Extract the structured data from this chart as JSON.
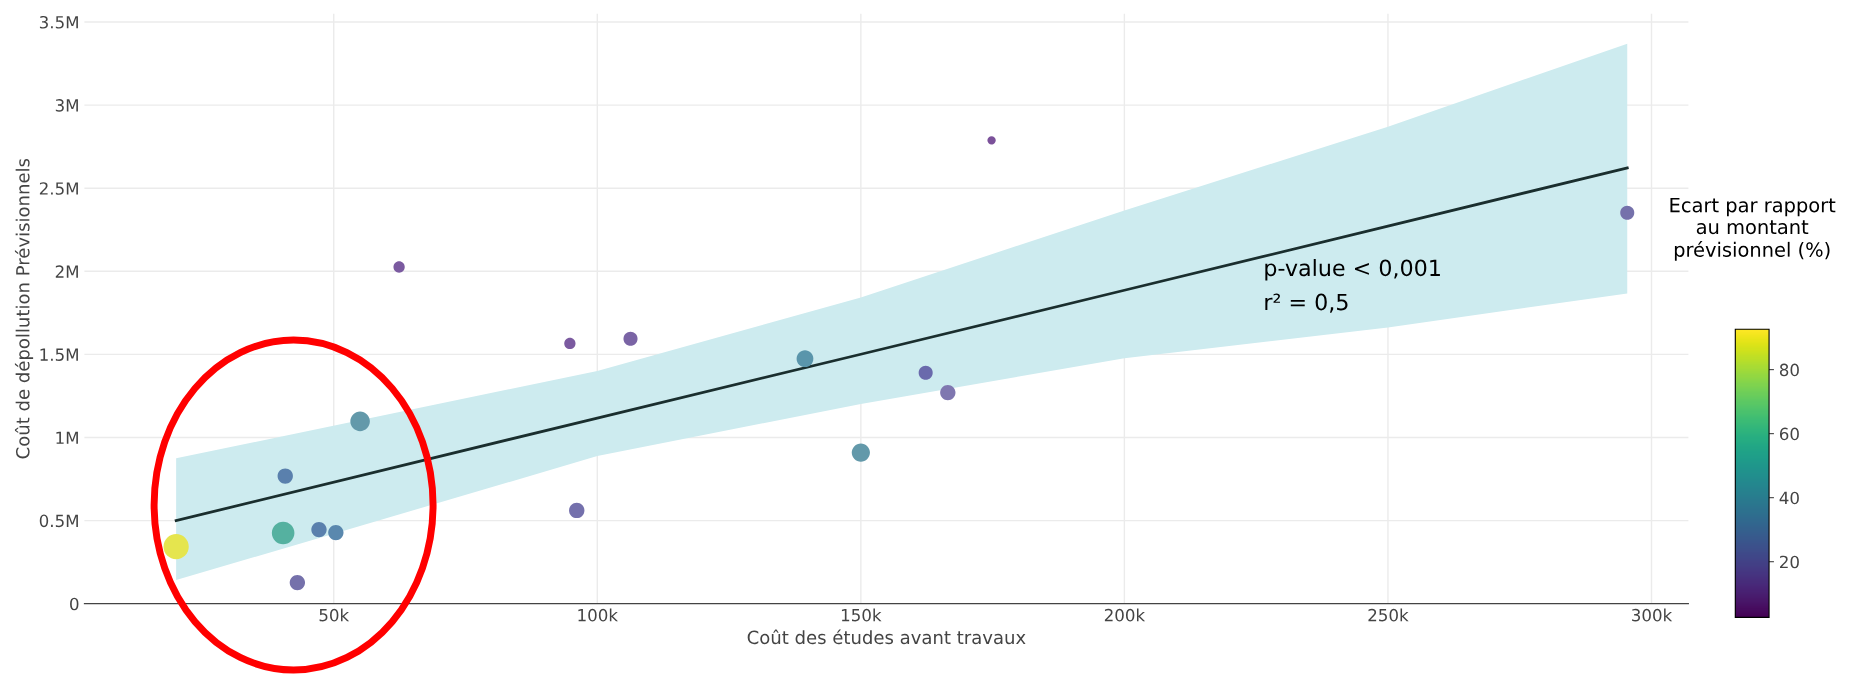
{
  "chart_data": {
    "type": "bubble",
    "xlabel": "Coût des études avant travaux",
    "ylabel": "Coût de dépollution Prévisionnels",
    "clabel": "Ecart par rapport\nau montant\nprévisionnel (%)",
    "xlim": [
      2700,
      307000
    ],
    "ylim": [
      0,
      3550000
    ],
    "xticks": [
      {
        "value": 50000,
        "label": "50k"
      },
      {
        "value": 100000,
        "label": "100k"
      },
      {
        "value": 150000,
        "label": "150k"
      },
      {
        "value": 200000,
        "label": "200k"
      },
      {
        "value": 250000,
        "label": "250k"
      },
      {
        "value": 300000,
        "label": "300k"
      }
    ],
    "yticks": [
      0,
      {
        "value": 500000,
        "label": "0.5M"
      },
      {
        "value": 1000000,
        "label": "1M"
      },
      {
        "value": 1500000,
        "label": "1.5M"
      },
      {
        "value": 2000000,
        "label": "2M"
      },
      {
        "value": 2500000,
        "label": "2.5M"
      },
      {
        "value": 3000000,
        "label": "3M"
      },
      {
        "value": 3500000,
        "label": "3.5M"
      }
    ],
    "clim": [
      2.6,
      92.6
    ],
    "cticks": [
      20,
      40,
      60,
      80
    ],
    "grid": true,
    "annotations": [
      "p-value < 0,001",
      "r² = 0,5"
    ],
    "series": [
      {
        "type": "line",
        "color": "#1a2e2e",
        "x": [
          20100,
          100000,
          150000,
          200000,
          250000,
          295400
        ],
        "values": [
          500000,
          1117000,
          1501000,
          1886000,
          2272000,
          2622000
        ],
        "lower": [
          142000,
          888000,
          1202000,
          1477000,
          1662000,
          1867000
        ],
        "upper": [
          875000,
          1400000,
          1843000,
          2366000,
          2870000,
          3370000
        ]
      },
      {
        "type": "bubble",
        "x": [
          20100,
          40400,
          40800,
          43100,
          47200,
          50400,
          55000,
          62400,
          94800,
          106300,
          96100,
          139400,
          150000,
          162300,
          166500,
          174800,
          295400
        ],
        "values": [
          343000,
          425000,
          768000,
          127000,
          446000,
          428000,
          1097000,
          2026000,
          1566000,
          1594000,
          561000,
          1474000,
          909000,
          1390000,
          1270000,
          2788000,
          2352000
        ],
        "colors": [
          "#e5e54e",
          "#55b1a0",
          "#5a80ad",
          "#7571ab",
          "#5a80ad",
          "#5a88ae",
          "#6399aa",
          "#7b5aa0",
          "#7b5aa0",
          "#7a64a5",
          "#7470ac",
          "#5a95ab",
          "#6399aa",
          "#6a6aac",
          "#7f77b0",
          "#7b519a",
          "#7571ab"
        ],
        "sizes": [
          1,
          0.8,
          0.37,
          0.37,
          0.37,
          0.37,
          0.6,
          0.2,
          0.2,
          0.31,
          0.37,
          0.44,
          0.52,
          0.31,
          0.37,
          0.11,
          0.31
        ]
      }
    ]
  }
}
